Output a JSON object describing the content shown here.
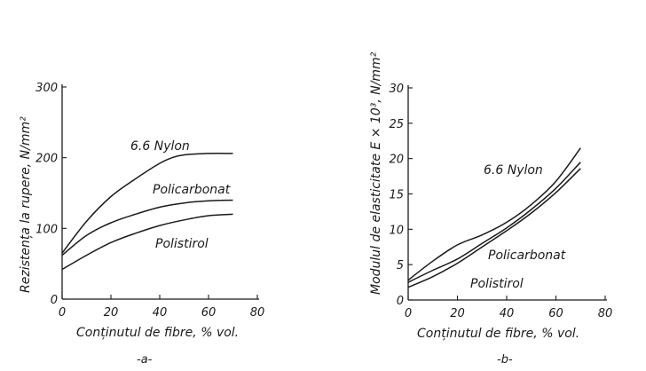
{
  "chart_data": [
    {
      "type": "line",
      "subtitle": "-a-",
      "xlabel": "Conținutul de fibre, % vol.",
      "ylabel": "Rezistența la rupere, N/mm²",
      "xlim": [
        0,
        80
      ],
      "ylim": [
        0,
        300
      ],
      "xticks": [
        0,
        20,
        40,
        60,
        80
      ],
      "yticks": [
        0,
        100,
        200,
        300
      ],
      "grid": false,
      "legend": "inline labels",
      "series": [
        {
          "name": "6.6 Nylon",
          "x": [
            0,
            10,
            20,
            30,
            40,
            45,
            50,
            60,
            70
          ],
          "y": [
            65,
            110,
            145,
            170,
            192,
            200,
            204,
            206,
            206
          ]
        },
        {
          "name": "Policarbonat",
          "x": [
            0,
            10,
            20,
            30,
            40,
            50,
            60,
            70
          ],
          "y": [
            62,
            90,
            108,
            120,
            130,
            136,
            139,
            140
          ]
        },
        {
          "name": "Polistirol",
          "x": [
            0,
            10,
            20,
            30,
            40,
            50,
            60,
            70
          ],
          "y": [
            42,
            62,
            80,
            93,
            104,
            112,
            118,
            120
          ]
        }
      ]
    },
    {
      "type": "line",
      "subtitle": "-b-",
      "xlabel": "Conținutul de fibre, % vol.",
      "ylabel": "Modulul de elasticitate E × 10³, N/mm²",
      "xlim": [
        0,
        80
      ],
      "ylim": [
        0,
        30
      ],
      "xticks": [
        0,
        20,
        40,
        60,
        80
      ],
      "yticks": [
        0,
        5,
        10,
        15,
        20,
        25,
        30
      ],
      "grid": false,
      "legend": "inline labels",
      "series": [
        {
          "name": "6.6 Nylon",
          "x": [
            0,
            10,
            20,
            30,
            40,
            50,
            60,
            70
          ],
          "y": [
            2.8,
            5.5,
            7.8,
            9.2,
            11,
            13.5,
            16.8,
            21.5
          ]
        },
        {
          "name": "Policarbonat",
          "x": [
            0,
            10,
            20,
            30,
            40,
            50,
            60,
            70
          ],
          "y": [
            2.5,
            4.2,
            5.8,
            8,
            10.2,
            12.8,
            15.8,
            19.5
          ]
        },
        {
          "name": "Polistirol",
          "x": [
            0,
            10,
            20,
            30,
            40,
            50,
            60,
            70
          ],
          "y": [
            1.8,
            3.3,
            5.2,
            7.5,
            9.8,
            12.3,
            15.2,
            18.6
          ]
        }
      ]
    }
  ]
}
